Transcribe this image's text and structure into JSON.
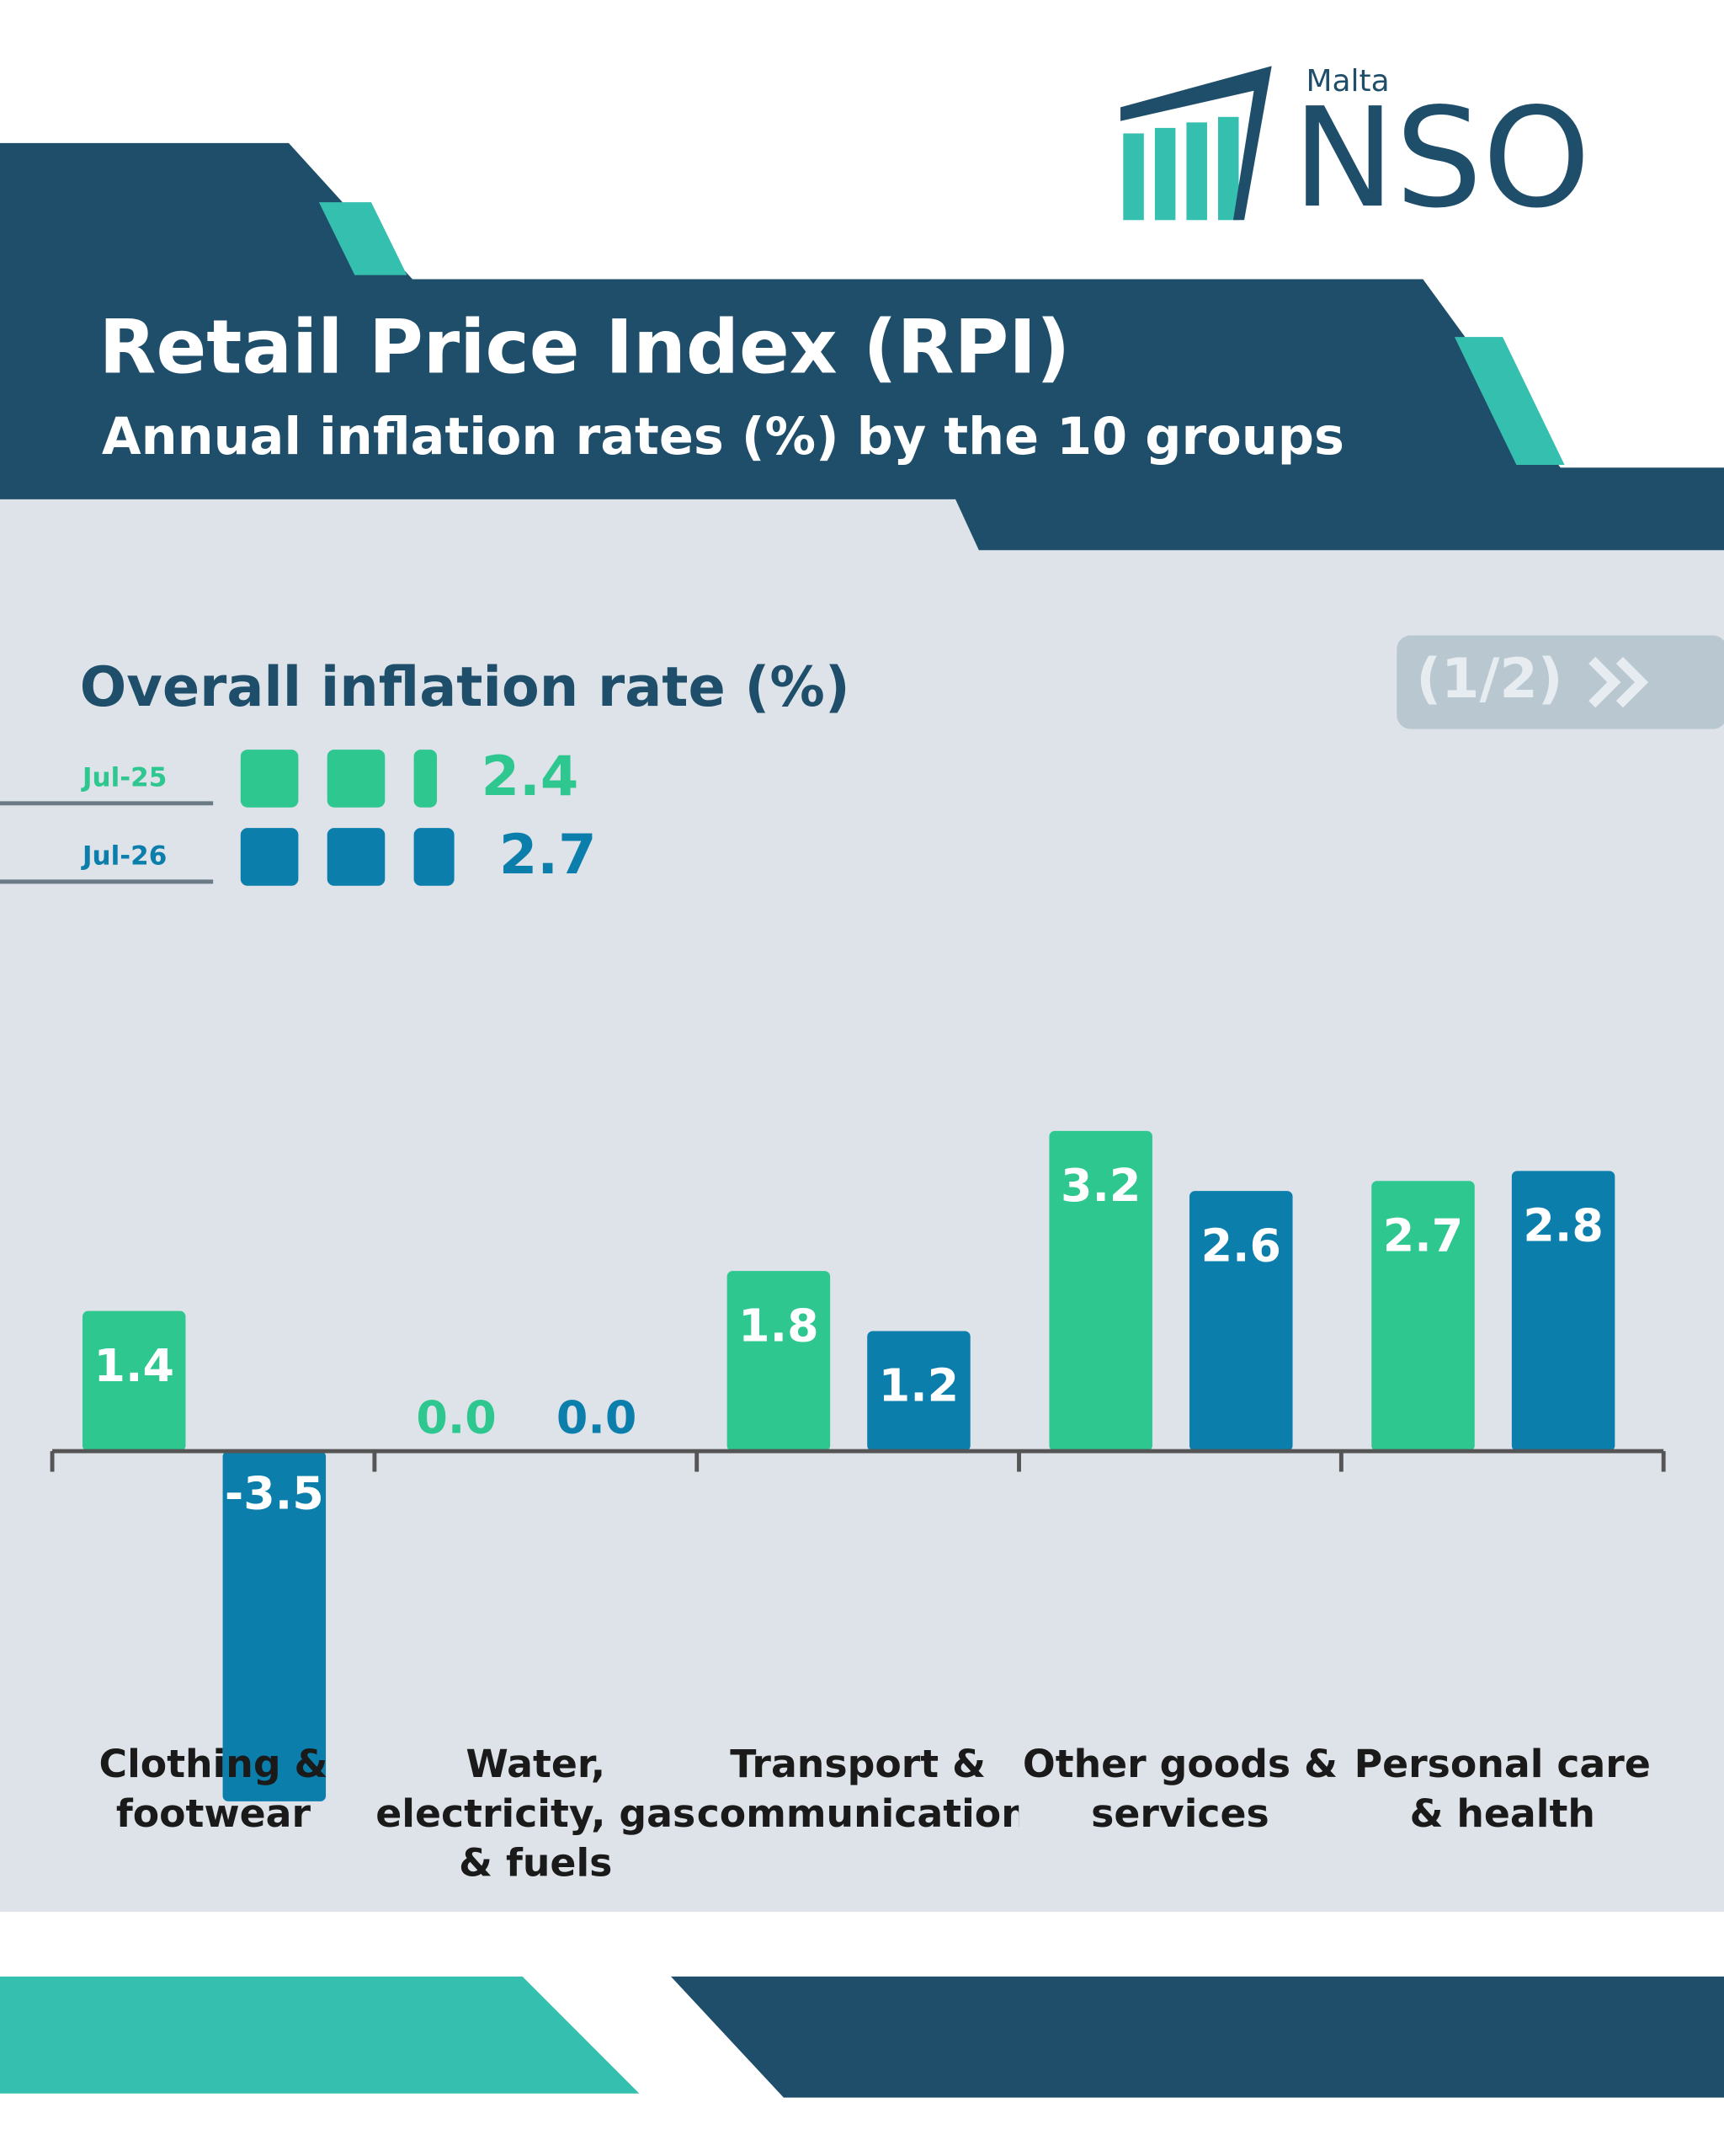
{
  "logo": {
    "small": "Malta",
    "big": "NSO"
  },
  "title": "Retail Price Index (RPI)",
  "subtitle": "Annual inflation rates (%) by the 10 groups",
  "page_indicator": "(1/2)",
  "overall": {
    "title": "Overall inflation rate (%)",
    "values": [
      2.4,
      2.7
    ]
  },
  "chart_data": {
    "type": "bar",
    "categories": [
      "Clothing & footwear",
      "Water, electricity, gas & fuels",
      "Transport & communication",
      "Other goods & services",
      "Personal care & health"
    ],
    "series": [
      {
        "name": "Jul-25",
        "color": "#2ec78f",
        "values": [
          1.4,
          0,
          1.8,
          3.2,
          2.7
        ],
        "value_labels": [
          "1.4",
          "0.0",
          "1.8",
          "3.2",
          "2.7"
        ]
      },
      {
        "name": "Jul-26",
        "color": "#0b7eac",
        "values": [
          -3.5,
          0,
          1.2,
          2.6,
          2.8
        ],
        "value_labels": [
          "-3.5",
          "0.0",
          "1.2",
          "2.6",
          "2.8"
        ]
      }
    ],
    "ylim": [
      -4,
      4
    ]
  }
}
